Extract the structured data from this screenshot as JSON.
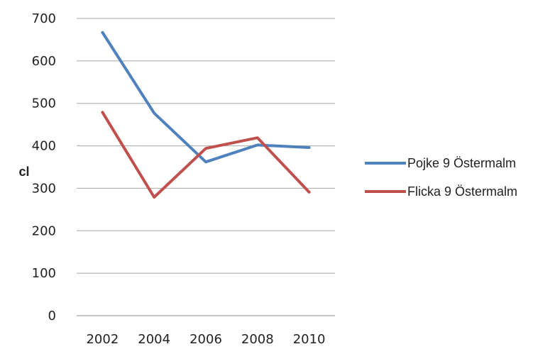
{
  "chart_data": {
    "type": "line",
    "categories": [
      "2002",
      "2004",
      "2006",
      "2008",
      "2010"
    ],
    "series": [
      {
        "name": "Pojke 9 Östermalm",
        "values": [
          667,
          477,
          362,
          402,
          396
        ],
        "color": "#4f81bd"
      },
      {
        "name": "Flicka 9 Östermalm",
        "values": [
          479,
          279,
          394,
          419,
          291
        ],
        "color": "#c0504d"
      }
    ],
    "ylabel": "cl",
    "xlabel": "",
    "ylim": [
      0,
      700
    ],
    "yticks": [
      0,
      100,
      200,
      300,
      400,
      500,
      600,
      700
    ],
    "grid": true,
    "legend": "right"
  }
}
